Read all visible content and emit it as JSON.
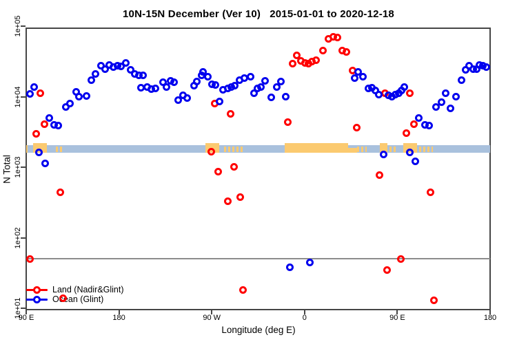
{
  "title": "10N-15N December (Ver 10)   2015-01-01 to 2020-12-18",
  "colors": {
    "land": "#ff0000",
    "ocean": "#0000ee",
    "strip_ocean": "#a9c1dd",
    "strip_land": "#fbca70",
    "reference_line": "#8c8c8c",
    "frame": "#454545"
  },
  "chart_data": {
    "type": "scatter",
    "title": "10N-15N December (Ver 10)   2015-01-01 to 2020-12-18",
    "xlabel": "Longitude (deg E)",
    "ylabel": "N Total",
    "x_axis": {
      "domain": [
        90,
        540
      ],
      "note": "longitude axis unwrapped eastward from 90E (90E to 180 to 90W to 0 to 90E to 180)",
      "ticks": [
        {
          "pos": 90,
          "label": "90 E"
        },
        {
          "pos": 180,
          "label": "180"
        },
        {
          "pos": 270,
          "label": "90 W"
        },
        {
          "pos": 360,
          "label": "0"
        },
        {
          "pos": 450,
          "label": "90 E"
        },
        {
          "pos": 540,
          "label": "180"
        }
      ]
    },
    "y_axis": {
      "scale": "log10",
      "domain": [
        10,
        100000
      ],
      "ticks": [
        {
          "pos": 10,
          "label": "1e+01"
        },
        {
          "pos": 100,
          "label": "1e+02"
        },
        {
          "pos": 1000,
          "label": "1e+03"
        },
        {
          "pos": 10000,
          "label": "1e+04"
        },
        {
          "pos": 100000,
          "label": "1e+05"
        }
      ]
    },
    "reference_line": {
      "y": 50
    },
    "map_strip": {
      "description": "land/ocean map band across all longitudes",
      "y_range": [
        1600,
        2050
      ],
      "land_patches": [
        {
          "from": 90.0,
          "to": 91.5,
          "style": "solid"
        },
        {
          "from": 96.7,
          "to": 110.1,
          "style": "raised"
        },
        {
          "from": 118.8,
          "to": 126.8,
          "style": "dots"
        },
        {
          "from": 263.8,
          "to": 277.2,
          "style": "raised"
        },
        {
          "from": 281.9,
          "to": 300.0,
          "style": "dots"
        },
        {
          "from": 340.7,
          "to": 402.2,
          "style": "raised"
        },
        {
          "from": 402.2,
          "to": 410.9,
          "style": "lower"
        },
        {
          "from": 411.0,
          "to": 420.3,
          "style": "dots"
        },
        {
          "from": 433.0,
          "to": 440.4,
          "style": "raised"
        },
        {
          "from": 442.4,
          "to": 449.1,
          "style": "dots"
        },
        {
          "from": 455.8,
          "to": 469.2,
          "style": "raised"
        },
        {
          "from": 471.2,
          "to": 484.5,
          "style": "dots"
        }
      ]
    },
    "legend": {
      "position": "bottom-left"
    },
    "series": [
      {
        "name": "Land (Nadir&Glint)",
        "color": "#ff0000",
        "marker": "open-circle",
        "points": [
          [
            93.5,
            50
          ],
          [
            99.6,
            3000
          ],
          [
            103.6,
            11300
          ],
          [
            107.9,
            4080
          ],
          [
            123.0,
            440
          ],
          [
            125.9,
            14
          ],
          [
            269.7,
            1640
          ],
          [
            273.0,
            7900
          ],
          [
            275.9,
            870
          ],
          [
            285.3,
            330
          ],
          [
            288.1,
            5640
          ],
          [
            291.9,
            1010
          ],
          [
            297.4,
            380
          ],
          [
            300.4,
            18
          ],
          [
            343.8,
            4330
          ],
          [
            348.3,
            29200
          ],
          [
            352.7,
            38300
          ],
          [
            356.5,
            32300
          ],
          [
            360.6,
            29900
          ],
          [
            363.9,
            29200
          ],
          [
            367.3,
            31100
          ],
          [
            371.5,
            32700
          ],
          [
            377.7,
            45200
          ],
          [
            383.4,
            66700
          ],
          [
            387.8,
            70800
          ],
          [
            391.8,
            69800
          ],
          [
            396.7,
            45200
          ],
          [
            400.7,
            43500
          ],
          [
            406.7,
            23400
          ],
          [
            410.7,
            3680
          ],
          [
            433.0,
            770
          ],
          [
            437.9,
            11100
          ],
          [
            440.2,
            35
          ],
          [
            453.3,
            50
          ],
          [
            458.7,
            3050
          ],
          [
            462.0,
            11300
          ],
          [
            466.4,
            4050
          ],
          [
            482.0,
            445
          ],
          [
            485.2,
            13
          ]
        ]
      },
      {
        "name": "Ocean (Glint)",
        "color": "#0000ee",
        "marker": "open-circle",
        "points": [
          [
            94.0,
            11000
          ],
          [
            98.0,
            13800
          ],
          [
            102.5,
            1620
          ],
          [
            108.1,
            1140
          ],
          [
            112.5,
            5000
          ],
          [
            117.2,
            4000
          ],
          [
            121.0,
            3850
          ],
          [
            128.3,
            7060
          ],
          [
            132.6,
            7900
          ],
          [
            138.3,
            11600
          ],
          [
            141.3,
            10100
          ],
          [
            148.6,
            10300
          ],
          [
            153.0,
            17300
          ],
          [
            156.9,
            21200
          ],
          [
            162.7,
            27200
          ],
          [
            166.7,
            24300
          ],
          [
            170.9,
            28400
          ],
          [
            174.7,
            26000
          ],
          [
            178.4,
            27200
          ],
          [
            182.0,
            26600
          ],
          [
            186.3,
            30400
          ],
          [
            191.4,
            23800
          ],
          [
            195.4,
            21200
          ],
          [
            199.2,
            19900
          ],
          [
            203.5,
            20100
          ],
          [
            201.3,
            13400
          ],
          [
            207.5,
            13800
          ],
          [
            211.5,
            12900
          ],
          [
            215.5,
            13200
          ],
          [
            222.9,
            16100
          ],
          [
            226.2,
            13800
          ],
          [
            230.2,
            16800
          ],
          [
            233.1,
            15900
          ],
          [
            237.3,
            8900
          ],
          [
            241.8,
            10500
          ],
          [
            246.3,
            9600
          ],
          [
            252.5,
            14200
          ],
          [
            255.8,
            16500
          ],
          [
            260.0,
            19900
          ],
          [
            261.8,
            22200
          ],
          [
            266.3,
            19400
          ],
          [
            270.0,
            15100
          ],
          [
            273.4,
            14800
          ],
          [
            277.4,
            8600
          ],
          [
            281.2,
            12400
          ],
          [
            285.3,
            13200
          ],
          [
            289.0,
            13800
          ],
          [
            292.1,
            14400
          ],
          [
            297.0,
            17300
          ],
          [
            301.3,
            18200
          ],
          [
            307.5,
            19100
          ],
          [
            310.9,
            11300
          ],
          [
            314.2,
            13200
          ],
          [
            317.6,
            13700
          ],
          [
            321.7,
            16800
          ],
          [
            327.6,
            9700
          ],
          [
            333.2,
            13800
          ],
          [
            337.2,
            16500
          ],
          [
            341.6,
            10100
          ],
          [
            345.9,
            38
          ],
          [
            365.0,
            45
          ],
          [
            408.3,
            18500
          ],
          [
            412.0,
            22200
          ],
          [
            416.7,
            19000
          ],
          [
            422.3,
            13200
          ],
          [
            425.3,
            13300
          ],
          [
            428.7,
            12200
          ],
          [
            432.0,
            10600
          ],
          [
            436.8,
            1500
          ],
          [
            441.7,
            10500
          ],
          [
            444.6,
            10100
          ],
          [
            447.9,
            10700
          ],
          [
            451.3,
            11100
          ],
          [
            453.9,
            12200
          ],
          [
            456.9,
            13600
          ],
          [
            461.9,
            1620
          ],
          [
            467.3,
            1200
          ],
          [
            470.9,
            4960
          ],
          [
            476.9,
            3960
          ],
          [
            480.6,
            3870
          ],
          [
            487.3,
            7060
          ],
          [
            493.1,
            8400
          ],
          [
            496.9,
            11300
          ],
          [
            501.3,
            6860
          ],
          [
            506.9,
            10100
          ],
          [
            512.5,
            17300
          ],
          [
            516.3,
            23900
          ],
          [
            519.8,
            27600
          ],
          [
            523.6,
            24800
          ],
          [
            527.0,
            24500
          ],
          [
            529.8,
            28200
          ],
          [
            533.2,
            27200
          ],
          [
            536.5,
            26100
          ]
        ]
      }
    ]
  }
}
